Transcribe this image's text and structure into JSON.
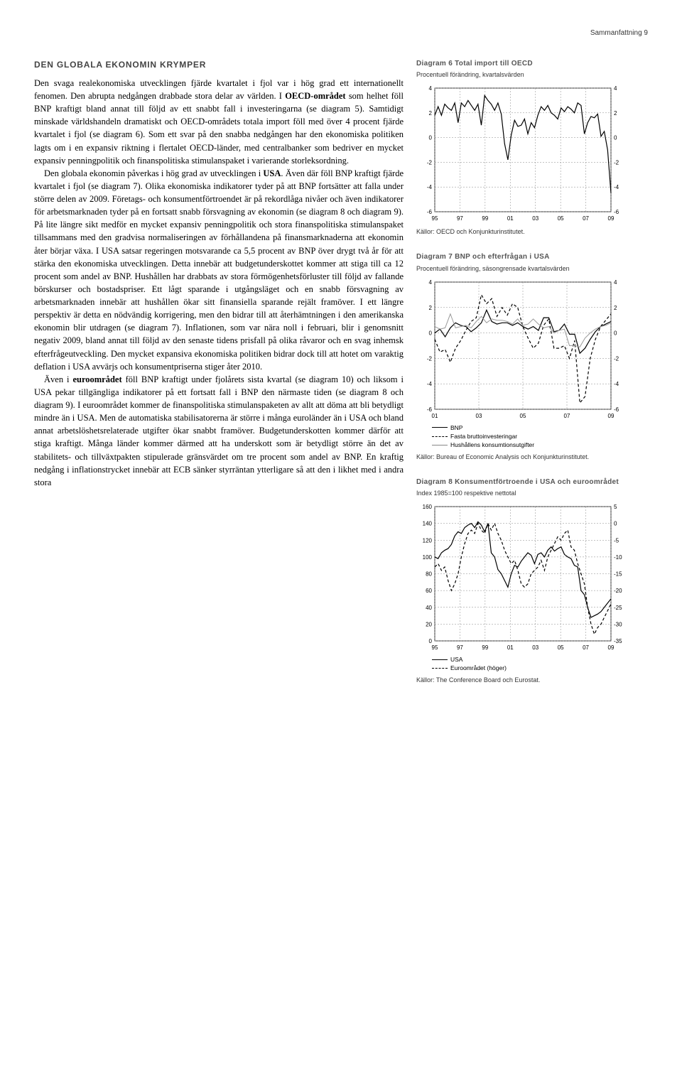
{
  "header": "Sammanfattning   9",
  "heading": "DEN GLOBALA EKONOMIN KRYMPER",
  "para1": "Den svaga realekonomiska utvecklingen fjärde kvartalet i fjol var i hög grad ett internationellt fenomen. Den abrupta nedgången drabbade stora delar av världen. I <b>OECD-området</b> som helhet föll BNP kraftigt bland annat till följd av ett snabbt fall i investeringarna (se diagram 5). Samtidigt minskade världshandeln dramatiskt och OECD-områdets totala import föll med över 4 procent fjärde kvartalet i fjol (se diagram 6). Som ett svar på den snabba nedgången har den ekonomiska politiken lagts om i en expansiv riktning i flertalet OECD-länder, med centralbanker som bedriver en mycket expansiv penningpolitik och finanspolitiska stimulanspaket i varierande storleksordning.",
  "para2": "Den globala ekonomin påverkas i hög grad av utvecklingen i <b>USA</b>. Även där föll BNP kraftigt fjärde kvartalet i fjol (se diagram 7). Olika ekonomiska indikatorer tyder på att BNP fortsätter att falla under större delen av 2009. Företags- och konsumentförtroendet är på rekordlåga nivåer och även indikatorer för arbetsmarknaden tyder på en fortsatt snabb försvagning av ekonomin (se diagram 8 och diagram 9). På lite längre sikt medför en mycket expansiv penningpolitik och stora finanspolitiska stimulanspaket tillsammans med den gradvisa normaliseringen av förhållandena på finansmarknaderna att ekonomin åter börjar växa. I USA satsar regeringen motsvarande ca 5,5 procent av BNP över drygt två år för att stärka den ekonomiska utvecklingen. Detta innebär att budgetunderskottet kommer att stiga till ca 12 procent som andel av BNP. Hushållen har drabbats av stora förmögenhetsförluster till följd av fallande börskurser och bostadspriser. Ett lågt sparande i utgångsläget och en snabb försvagning av arbetsmarknaden innebär att hushållen ökar sitt finansiella sparande rejält framöver. I ett längre perspektiv är detta en nödvändig korrigering, men den bidrar till att återhämtningen i den amerikanska ekonomin blir utdragen (se diagram 7). Inflationen, som var nära noll i februari, blir i genomsnitt negativ 2009, bland annat till följd av den senaste tidens prisfall på olika råvaror och en svag inhemsk efterfrågeutveckling. Den mycket expansiva ekonomiska politiken bidrar dock till att hotet om varaktig deflation i USA avvärjs och konsumentpriserna stiger åter 2010.",
  "para3": "Även i <b>euroområdet</b> föll BNP kraftigt under fjolårets sista kvartal (se diagram 10) och liksom i USA pekar tillgängliga indikatorer på ett fortsatt fall i BNP den närmaste tiden (se diagram 8 och diagram 9). I euroområdet kommer de finanspolitiska stimulanspaketen av allt att döma att bli betydligt mindre än i USA. Men de automatiska stabilisatorerna är större i många euroländer än i USA och bland annat arbetslöshetsrelaterade utgifter ökar snabbt framöver. Budgetunderskotten kommer därför att stiga kraftigt. Många länder kommer därmed att ha underskott som är betydligt större än det av stabilitets- och tillväxtpakten stipulerade gränsvärdet om tre procent som andel av BNP. En kraftig nedgång i inflationstrycket innebär att ECB sänker styrräntan ytterligare så att den i likhet med i andra stora",
  "chart6": {
    "title": "Diagram 6 Total import till OECD",
    "subtitle": "Procentuell förändring, kvartalsvärden",
    "source": "Källor: OECD och Konjunkturinstitutet.",
    "ylim": [
      -6,
      4
    ],
    "yticks": [
      -6,
      -4,
      -2,
      0,
      2,
      4
    ],
    "xticks": [
      "95",
      "97",
      "99",
      "01",
      "03",
      "05",
      "07",
      "09"
    ],
    "series": [
      {
        "style": "solid",
        "color": "#000",
        "data": [
          1.8,
          2.5,
          1.8,
          2.7,
          2.4,
          2.2,
          2.8,
          1.2,
          2.8,
          2.5,
          3.0,
          2.6,
          2.2,
          2.7,
          1.0,
          3.4,
          3.0,
          2.7,
          2.2,
          2.8,
          1.9,
          -0.5,
          -1.8,
          0.2,
          1.4,
          0.9,
          1.0,
          1.5,
          0.3,
          1.2,
          0.8,
          1.8,
          2.5,
          2.2,
          2.6,
          2.0,
          1.8,
          1.5,
          2.4,
          2.1,
          2.5,
          2.3,
          2.0,
          2.8,
          2.6,
          0.3,
          1.2,
          1.7,
          1.6,
          1.9,
          0.1,
          0.5,
          -1.0,
          -4.5
        ]
      }
    ]
  },
  "chart7": {
    "title": "Diagram 7 BNP och efterfrågan i USA",
    "subtitle": "Procentuell förändring, säsongrensade kvartalsvärden",
    "source": "Källor: Bureau of Economic Analysis och Konjunkturinstitutet.",
    "ylim": [
      -6,
      4
    ],
    "yticks": [
      -6,
      -4,
      -2,
      0,
      2,
      4
    ],
    "xticks": [
      "01",
      "03",
      "05",
      "07",
      "09"
    ],
    "legend": [
      "BNP",
      "Fasta bruttoinvesteringar",
      "Hushållens konsumtionsutgifter"
    ],
    "series": [
      {
        "style": "solid",
        "color": "#000",
        "data": [
          0,
          0.3,
          -0.3,
          0.4,
          0.8,
          0.6,
          0.5,
          0.1,
          0.4,
          0.8,
          1.8,
          0.9,
          0.7,
          0.8,
          0.8,
          0.6,
          0.8,
          0.5,
          0.3,
          0.5,
          0.2,
          1.2,
          1.2,
          0.1,
          0.2,
          0.7,
          -0.1,
          -0.1,
          -1.6,
          -1.2,
          -0.5,
          0.1,
          0.5,
          0.7,
          0.9
        ]
      },
      {
        "style": "dashed",
        "color": "#000",
        "data": [
          -0.5,
          -1.5,
          -1.3,
          -2.3,
          -1.2,
          -0.6,
          0.2,
          0.9,
          1.2,
          3.0,
          2.3,
          2.7,
          1.3,
          2.0,
          1.4,
          2.3,
          2.0,
          0.5,
          -0.4,
          -1.2,
          -0.8,
          0.6,
          1.1,
          -1.2,
          -1.2,
          -1.0,
          -2.0,
          -0.6,
          -5.5,
          -5.0,
          -2.0,
          -0.5,
          0.5,
          1.0,
          1.5
        ]
      },
      {
        "style": "solid",
        "color": "#999",
        "data": [
          0.5,
          0.3,
          0.4,
          1.5,
          0.4,
          0.5,
          0.6,
          0.4,
          0.9,
          1.3,
          0.8,
          1.1,
          1.0,
          1.0,
          0.9,
          0.7,
          1.1,
          0.6,
          0.7,
          1.1,
          0.7,
          0.4,
          0.5,
          0,
          0.2,
          0.3,
          -1.0,
          -1.0,
          -1.1,
          -0.4,
          0,
          0.3,
          0.5,
          0.6,
          0.8
        ]
      }
    ]
  },
  "chart8": {
    "title": "Diagram 8 Konsumentförtroende i USA och euroområdet",
    "subtitle": "Index 1985=100 respektive nettotal",
    "source": "Källor: The Conference Board och Eurostat.",
    "ylimL": [
      0,
      160
    ],
    "yticksL": [
      0,
      20,
      40,
      60,
      80,
      100,
      120,
      140,
      160
    ],
    "ylimR": [
      -35,
      5
    ],
    "yticksR": [
      -35,
      -30,
      -25,
      -20,
      -15,
      -10,
      -5,
      0,
      5
    ],
    "xticks": [
      "95",
      "97",
      "99",
      "01",
      "03",
      "05",
      "07",
      "09"
    ],
    "legend": [
      "USA",
      "Euroområdet (höger)"
    ],
    "series": [
      {
        "axis": "L",
        "style": "solid",
        "color": "#000",
        "data": [
          100,
          98,
          105,
          108,
          110,
          115,
          125,
          130,
          128,
          135,
          138,
          140,
          135,
          142,
          138,
          130,
          140,
          105,
          100,
          85,
          80,
          72,
          64,
          80,
          90,
          88,
          95,
          100,
          105,
          102,
          92,
          103,
          105,
          100,
          108,
          112,
          107,
          110,
          112,
          103,
          100,
          98,
          90,
          88,
          60,
          55,
          40,
          28,
          30,
          32,
          35,
          40,
          45,
          50
        ]
      },
      {
        "axis": "R",
        "style": "dashed",
        "color": "#000",
        "data": [
          -13,
          -12,
          -14,
          -13,
          -17,
          -20,
          -18,
          -15,
          -10,
          -6,
          -3,
          -2,
          -3,
          0,
          -2,
          -3,
          0,
          -2,
          0,
          -3,
          -5,
          -8,
          -10,
          -12,
          -11,
          -14,
          -18,
          -19,
          -18,
          -15,
          -14,
          -13,
          -11,
          -14,
          -10,
          -8,
          -6,
          -4,
          -5,
          -3,
          -2,
          -7,
          -8,
          -12,
          -15,
          -18,
          -25,
          -30,
          -33,
          -31,
          -30,
          -28,
          -26,
          -24
        ]
      }
    ]
  }
}
